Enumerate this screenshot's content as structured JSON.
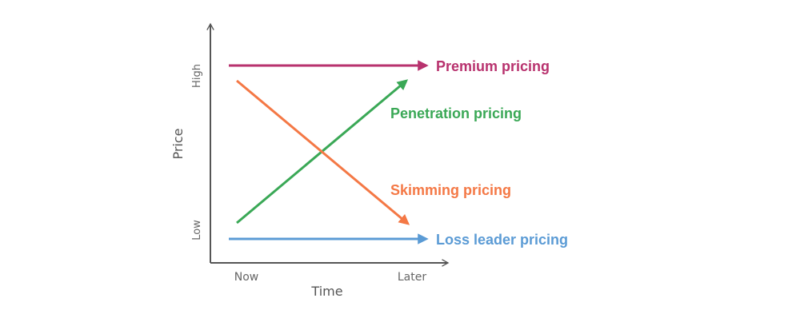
{
  "axes": {
    "x_title": "Time",
    "y_title": "Price",
    "x_ticks": [
      "Now",
      "Later"
    ],
    "y_ticks": [
      "Low",
      "High"
    ],
    "axis_color": "#555555"
  },
  "strategies": [
    {
      "key": "premium",
      "label": "Premium pricing",
      "color": "#b8326e",
      "start": "High",
      "end": "High"
    },
    {
      "key": "penetration",
      "label": "Penetration pricing",
      "color": "#3aa856",
      "start": "Low",
      "end": "High"
    },
    {
      "key": "skimming",
      "label": "Skimming pricing",
      "color": "#f47845",
      "start": "High",
      "end": "Low"
    },
    {
      "key": "loss-leader",
      "label": "Loss leader pricing",
      "color": "#5b9bd5",
      "start": "Low",
      "end": "Low"
    }
  ]
}
